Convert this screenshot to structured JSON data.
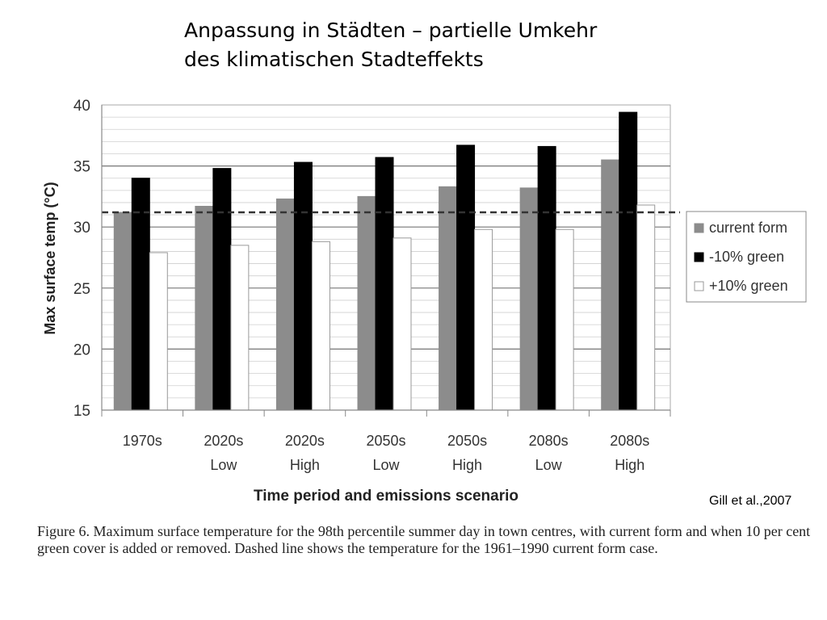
{
  "slide": {
    "title_line1": "Anpassung in Städten – partielle Umkehr",
    "title_line2": "des klimatischen Stadteffekts",
    "credit": "Gill et al.,2007",
    "caption": "Figure 6. Maximum surface temperature for the 98th percentile summer day in town centres, with current form and when 10 per cent green cover is added or removed. Dashed line shows the temperature for the 1961–1990 current form case."
  },
  "chart_data": {
    "type": "bar",
    "categories": [
      [
        "1970s",
        ""
      ],
      [
        "2020s",
        "Low"
      ],
      [
        "2020s",
        "High"
      ],
      [
        "2050s",
        "Low"
      ],
      [
        "2050s",
        "High"
      ],
      [
        "2080s",
        "Low"
      ],
      [
        "2080s",
        "High"
      ]
    ],
    "series": [
      {
        "name": "current form",
        "color": "#8c8c8c",
        "values": [
          31.2,
          31.7,
          32.3,
          32.5,
          33.3,
          33.2,
          35.5
        ]
      },
      {
        "name": "-10% green",
        "color": "#000000",
        "values": [
          34.0,
          34.8,
          35.3,
          35.7,
          36.7,
          36.6,
          39.4
        ]
      },
      {
        "name": "+10% green",
        "color": "#ffffff",
        "values": [
          27.9,
          28.5,
          28.8,
          29.1,
          29.8,
          29.8,
          31.8
        ]
      }
    ],
    "reference_line": {
      "value": 31.2,
      "style": "dashed"
    },
    "xlabel": "Time period and emissions scenario",
    "ylabel": "Max surface temp (°C)",
    "ylim": [
      15,
      40
    ],
    "yticks": [
      15,
      20,
      25,
      30,
      35,
      40
    ],
    "grid": true,
    "legend_position": "right"
  }
}
